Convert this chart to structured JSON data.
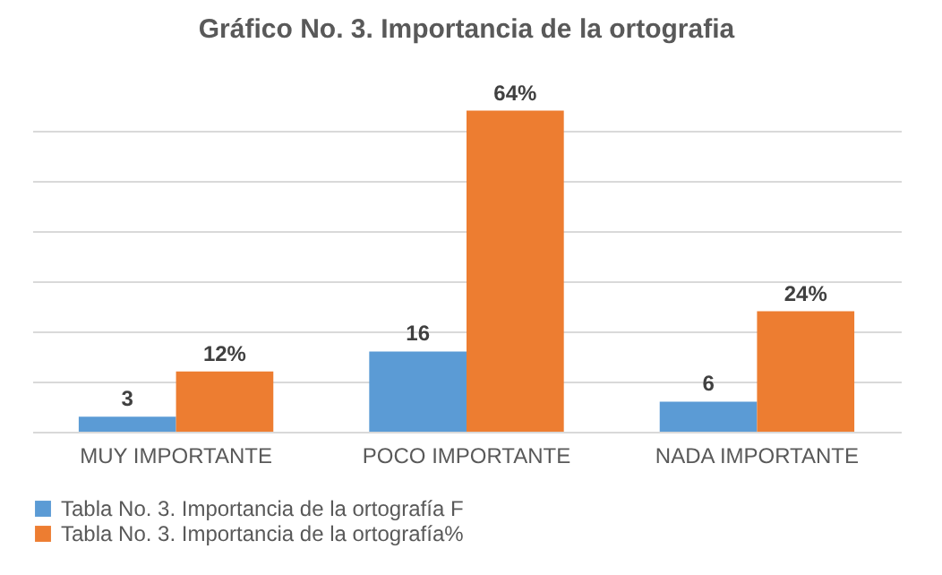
{
  "chart_data": {
    "type": "bar",
    "title": "Gráfico No. 3. Importancia de la ortografia",
    "categories": [
      "MUY IMPORTANTE",
      "POCO IMPORTANTE",
      "NADA IMPORTANTE"
    ],
    "series": [
      {
        "name": "Tabla No. 3. Importancia de la ortografía F",
        "color": "#5b9bd5",
        "values": [
          3,
          16,
          6
        ],
        "value_labels": [
          "3",
          "16",
          "6"
        ]
      },
      {
        "name": "Tabla No. 3. Importancia de la ortografía%",
        "color": "#ed7d31",
        "values": [
          12,
          64,
          24
        ],
        "value_labels": [
          "12%",
          "64%",
          "24%"
        ]
      }
    ],
    "tick_labels": "x",
    "grid": "y",
    "legend": "bottom"
  }
}
